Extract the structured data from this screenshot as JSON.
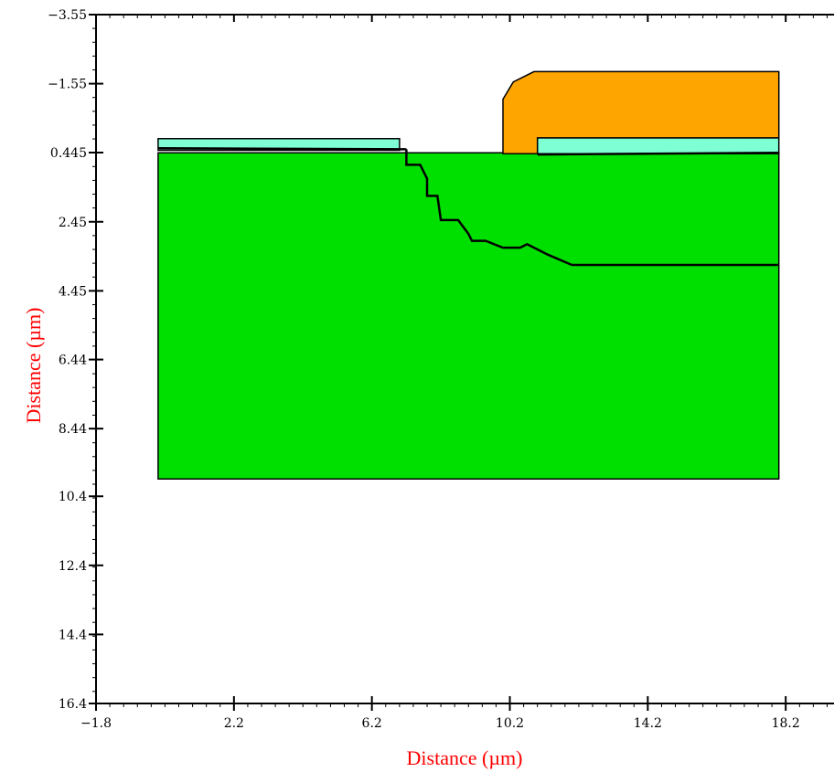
{
  "chart_data": {
    "type": "area",
    "title": "",
    "xlabel": "Distance (µm)",
    "ylabel": "Distance (µm)",
    "xlim": [
      -1.8,
      19.6
    ],
    "ylim": [
      16.4,
      -3.55
    ],
    "y_axis_inverted": true,
    "x_ticks": [
      "-1.8",
      "2.2",
      "6.2",
      "10.2",
      "14.2",
      "18.2"
    ],
    "y_ticks": [
      "-3.55",
      "-1.55",
      "0.445",
      "2.45",
      "4.45",
      "6.44",
      "8.44",
      "10.4",
      "12.4",
      "14.4",
      "16.4"
    ],
    "grid": false,
    "regions": [
      {
        "color": "#00e000",
        "points": [
          [
            0,
            0.45
          ],
          [
            18,
            0.45
          ],
          [
            18,
            9.9
          ],
          [
            0,
            9.9
          ]
        ]
      },
      {
        "color": "#7fffd4",
        "points": [
          [
            0,
            0.38
          ],
          [
            0,
            0.04
          ],
          [
            7,
            0.04
          ],
          [
            7,
            0.38
          ]
        ]
      },
      {
        "color": "#7fffd4",
        "points": [
          [
            11,
            0.48
          ],
          [
            11,
            0.02
          ],
          [
            18,
            0.02
          ],
          [
            18,
            0.48
          ]
        ]
      },
      {
        "color": "#ffa500",
        "points": [
          [
            10,
            0.48
          ],
          [
            10,
            -1.1
          ],
          [
            10.3,
            -1.6
          ],
          [
            10.9,
            -1.9
          ],
          [
            18,
            -1.9
          ],
          [
            18,
            0.02
          ],
          [
            11,
            0.02
          ],
          [
            11,
            0.48
          ]
        ]
      }
    ],
    "lines": [
      {
        "color": "#000000",
        "points": [
          [
            0,
            0.32
          ],
          [
            7.2,
            0.35
          ]
        ]
      },
      {
        "color": "#000000",
        "points": [
          [
            7.2,
            0.35
          ],
          [
            7.2,
            0.8
          ],
          [
            7.6,
            0.8
          ],
          [
            7.8,
            1.2
          ],
          [
            7.8,
            1.7
          ],
          [
            8.1,
            1.7
          ],
          [
            8.2,
            2.4
          ],
          [
            8.7,
            2.4
          ],
          [
            9.0,
            2.8
          ],
          [
            9.1,
            3.0
          ],
          [
            9.5,
            3.0
          ],
          [
            10.0,
            3.2
          ],
          [
            10.5,
            3.2
          ],
          [
            10.7,
            3.1
          ],
          [
            11.3,
            3.4
          ],
          [
            12.0,
            3.7
          ],
          [
            18,
            3.7
          ]
        ]
      },
      {
        "color": "#000000",
        "points": [
          [
            11,
            0.5
          ],
          [
            18,
            0.45
          ]
        ]
      }
    ]
  }
}
